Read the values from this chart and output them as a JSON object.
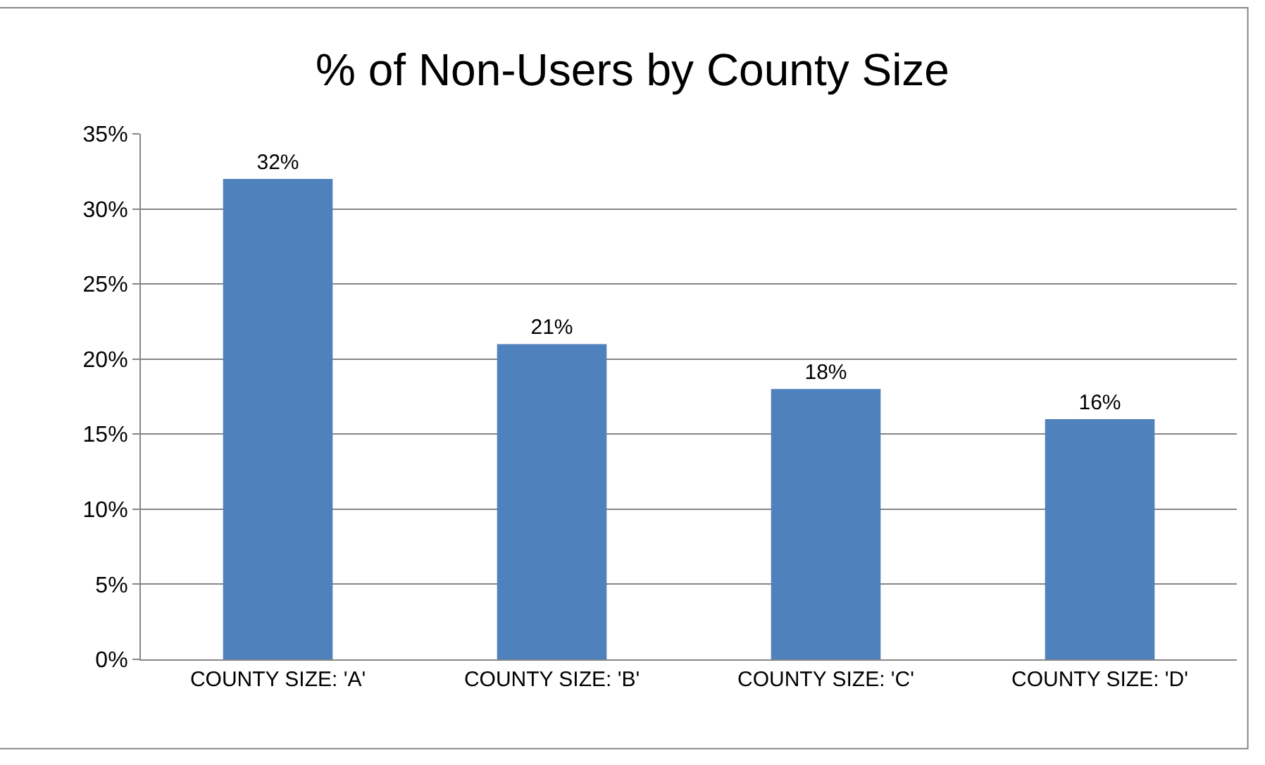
{
  "chart_data": {
    "type": "bar",
    "title": "% of Non-Users by County Size",
    "categories": [
      "COUNTY SIZE: 'A'",
      "COUNTY SIZE: 'B'",
      "COUNTY SIZE: 'C'",
      "COUNTY SIZE: 'D'"
    ],
    "values": [
      32,
      21,
      18,
      16
    ],
    "value_labels": [
      "32%",
      "21%",
      "18%",
      "16%"
    ],
    "color": "#4f81bd",
    "ylim": [
      0,
      35
    ],
    "yticks": [
      {
        "value": 0,
        "label": "0%"
      },
      {
        "value": 5,
        "label": "5%"
      },
      {
        "value": 10,
        "label": "10%"
      },
      {
        "value": 15,
        "label": "15%"
      },
      {
        "value": 20,
        "label": "20%"
      },
      {
        "value": 25,
        "label": "25%"
      },
      {
        "value": 30,
        "label": "30%"
      },
      {
        "value": 35,
        "label": "35%"
      }
    ],
    "grid": "y"
  }
}
